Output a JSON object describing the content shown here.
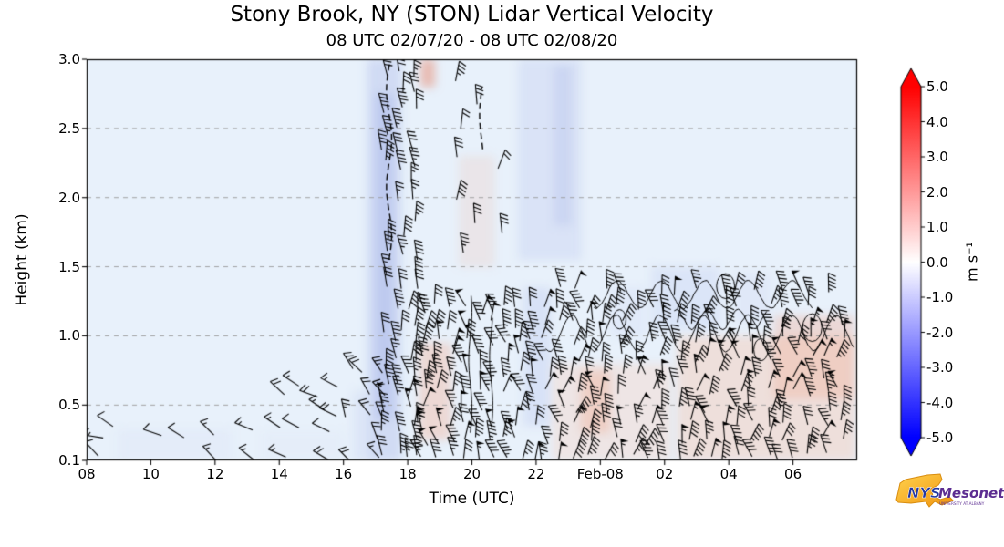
{
  "chart_data": {
    "type": "heatmap",
    "title": "Stony Brook, NY (STON) Lidar Vertical Velocity",
    "subtitle": "08 UTC 02/07/20 - 08 UTC 02/08/20",
    "xlabel": "Time (UTC)",
    "ylabel": "Height (km)",
    "x_range": [
      8,
      32
    ],
    "y_range": [
      0.1,
      3.0
    ],
    "plot_bg": "#e8f1fb",
    "grid_y": [
      0.5,
      1.0,
      1.5,
      2.0,
      2.5
    ],
    "x_ticks": [
      {
        "value": 8,
        "label": "08"
      },
      {
        "value": 10,
        "label": "10"
      },
      {
        "value": 12,
        "label": "12"
      },
      {
        "value": 14,
        "label": "14"
      },
      {
        "value": 16,
        "label": "16"
      },
      {
        "value": 18,
        "label": "18"
      },
      {
        "value": 20,
        "label": "20"
      },
      {
        "value": 22,
        "label": "22"
      },
      {
        "value": 24,
        "label": "Feb-08"
      },
      {
        "value": 26,
        "label": "02"
      },
      {
        "value": 28,
        "label": "04"
      },
      {
        "value": 30,
        "label": "06"
      }
    ],
    "y_ticks": [
      {
        "value": 3.0,
        "label": "3.0"
      },
      {
        "value": 2.5,
        "label": "2.5"
      },
      {
        "value": 2.0,
        "label": "2.0"
      },
      {
        "value": 1.5,
        "label": "1.5"
      },
      {
        "value": 1.0,
        "label": "1.0"
      },
      {
        "value": 0.5,
        "label": "0.5"
      },
      {
        "value": 0.1,
        "label": "0.1"
      }
    ],
    "colorbar": {
      "label": "m s⁻¹",
      "vmin": -5.0,
      "vmax": 5.0,
      "extend": "both",
      "color_pos": "#ff0000",
      "color_zero": "#ffffff",
      "color_neg": "#0000ff",
      "ticks": [
        {
          "value": 5,
          "label": "5.0"
        },
        {
          "value": 4,
          "label": "4.0"
        },
        {
          "value": 3,
          "label": "3.0"
        },
        {
          "value": 2,
          "label": "2.0"
        },
        {
          "value": 1,
          "label": "1.0"
        },
        {
          "value": 0,
          "label": "0.0"
        },
        {
          "value": -1,
          "label": "-1.0"
        },
        {
          "value": -2,
          "label": "-2.0"
        },
        {
          "value": -3,
          "label": "-3.0"
        },
        {
          "value": -4,
          "label": "-4.0"
        },
        {
          "value": -5,
          "label": "-5.0"
        }
      ]
    },
    "seed": 20200207,
    "shading": [
      {
        "x0": 16.75,
        "x1": 17.8,
        "y0": 0.1,
        "y1": 3.0,
        "color": "#b9c6ee",
        "alpha": 0.5
      },
      {
        "x0": 17.0,
        "x1": 17.55,
        "y0": 0.4,
        "y1": 2.75,
        "color": "#a3b2e8",
        "alpha": 0.4
      },
      {
        "x0": 16.3,
        "x1": 16.8,
        "y0": 0.1,
        "y1": 0.6,
        "color": "#ccd6f3",
        "alpha": 0.4
      },
      {
        "x0": 21.45,
        "x1": 23.4,
        "y0": 1.55,
        "y1": 3.0,
        "color": "#ccd6f3",
        "alpha": 0.5
      },
      {
        "x0": 22.55,
        "x1": 23.1,
        "y0": 1.8,
        "y1": 2.95,
        "color": "#b6c3ec",
        "alpha": 0.4
      },
      {
        "x0": 21.6,
        "x1": 22.45,
        "y0": 0.35,
        "y1": 1.35,
        "color": "#c5d0f1",
        "alpha": 0.45
      },
      {
        "x0": 18.35,
        "x1": 19.35,
        "y0": 0.25,
        "y1": 0.95,
        "color": "#f2c0ae",
        "alpha": 0.5
      },
      {
        "x0": 18.4,
        "x1": 18.85,
        "y0": 2.8,
        "y1": 3.0,
        "color": "#e88f79",
        "alpha": 0.55
      },
      {
        "x0": 22.5,
        "x1": 26.2,
        "y0": 0.1,
        "y1": 0.8,
        "color": "#f6d6c9",
        "alpha": 0.45
      },
      {
        "x0": 23.4,
        "x1": 24.3,
        "y0": 0.3,
        "y1": 0.75,
        "color": "#efae97",
        "alpha": 0.4
      },
      {
        "x0": 26.4,
        "x1": 31.95,
        "y0": 0.1,
        "y1": 1.0,
        "color": "#f4cdbc",
        "alpha": 0.5
      },
      {
        "x0": 29.4,
        "x1": 31.9,
        "y0": 0.55,
        "y1": 1.15,
        "color": "#efb59f",
        "alpha": 0.4
      },
      {
        "x0": 25.6,
        "x1": 27.7,
        "y0": 1.05,
        "y1": 1.5,
        "color": "#ccd6f3",
        "alpha": 0.45
      },
      {
        "x0": 28.2,
        "x1": 29.3,
        "y0": 1.1,
        "y1": 1.45,
        "color": "#d5ddf5",
        "alpha": 0.4
      },
      {
        "x0": 9.0,
        "x1": 12.5,
        "y0": 0.1,
        "y1": 0.32,
        "color": "#dfe7f7",
        "alpha": 0.5
      },
      {
        "x0": 13.5,
        "x1": 16.0,
        "y0": 0.1,
        "y1": 0.3,
        "color": "#e2e9f8",
        "alpha": 0.4
      },
      {
        "x0": 19.6,
        "x1": 20.7,
        "y0": 1.5,
        "y1": 2.3,
        "color": "#f0c4b4",
        "alpha": 0.25
      },
      {
        "x0": 24.3,
        "x1": 25.4,
        "y0": 1.0,
        "y1": 1.35,
        "color": "#d5ddf5",
        "alpha": 0.35
      }
    ],
    "barb_regions": [
      {
        "x0": 8.3,
        "x1": 16.0,
        "y0": 0.14,
        "y1": 0.44,
        "dx": 0.72,
        "dy": 0.17,
        "prob": 0.8,
        "spd_min": 10,
        "spd_max": 18,
        "ang": -150,
        "ang_jit": 22,
        "len": 21
      },
      {
        "x0": 14.2,
        "x1": 16.3,
        "y0": 0.44,
        "y1": 0.62,
        "dx": 0.55,
        "dy": 0.16,
        "prob": 0.6,
        "spd_min": 12,
        "spd_max": 20,
        "ang": -145,
        "ang_jit": 20,
        "len": 21
      },
      {
        "x0": 16.2,
        "x1": 17.3,
        "y0": 0.12,
        "y1": 0.85,
        "dx": 0.5,
        "dy": 0.15,
        "prob": 0.7,
        "spd_min": 15,
        "spd_max": 30,
        "ang": -120,
        "ang_jit": 18,
        "len": 20
      },
      {
        "x0": 17.3,
        "x1": 18.6,
        "y0": 0.15,
        "y1": 3.0,
        "dx": 0.45,
        "dy": 0.13,
        "prob": 0.82,
        "spd_min": 25,
        "spd_max": 48,
        "ang": -95,
        "ang_jit": 12,
        "len": 22
      },
      {
        "x0": 19.6,
        "x1": 21.3,
        "y0": 1.35,
        "y1": 3.0,
        "dx": 0.6,
        "dy": 0.22,
        "prob": 0.5,
        "spd_min": 20,
        "spd_max": 40,
        "ang": -85,
        "ang_jit": 18,
        "len": 22
      },
      {
        "x0": 18.1,
        "x1": 22.3,
        "y0": 0.12,
        "y1": 1.3,
        "dx": 0.42,
        "dy": 0.12,
        "prob": 0.9,
        "spd_min": 28,
        "spd_max": 55,
        "ang": -95,
        "ang_jit": 28,
        "len": 21
      },
      {
        "x0": 22.3,
        "x1": 31.9,
        "y0": 0.12,
        "y1": 1.42,
        "dx": 0.46,
        "dy": 0.12,
        "prob": 0.85,
        "spd_min": 28,
        "spd_max": 55,
        "ang": -90,
        "ang_jit": 32,
        "len": 21
      }
    ],
    "contours": {
      "dashed_vertical": [
        {
          "x": 17.42,
          "y0": 1.55,
          "y1": 3.0,
          "amp": 0.08
        },
        {
          "x": 20.3,
          "y0": 2.35,
          "y1": 2.8,
          "amp": 0.06
        }
      ],
      "solid_vertical": [
        {
          "x": 19.95,
          "y0": 0.3,
          "y1": 1.3,
          "amp": 0.05
        },
        {
          "x": 20.6,
          "y0": 0.35,
          "y1": 1.15,
          "amp": 0.05
        }
      ],
      "wavy_horizontal": [
        {
          "y": 1.02,
          "x0": 22.3,
          "x1": 31.9,
          "amp": 0.13,
          "waves": 7
        },
        {
          "y": 1.3,
          "x0": 23.8,
          "x1": 30.6,
          "amp": 0.1,
          "waves": 5
        },
        {
          "y": 1.12,
          "x0": 26.3,
          "x1": 29.2,
          "amp": 0.07,
          "waves": 3
        }
      ],
      "loops": [
        {
          "cx": 27.9,
          "cy": 1.36,
          "rx": 0.28,
          "ry": 0.09
        },
        {
          "cx": 24.6,
          "cy": 1.12,
          "rx": 0.2,
          "ry": 0.07
        },
        {
          "cx": 30.6,
          "cy": 1.06,
          "rx": 0.3,
          "ry": 0.1
        },
        {
          "cx": 29.0,
          "cy": 0.9,
          "rx": 0.22,
          "ry": 0.08
        }
      ]
    }
  },
  "logo": {
    "line1": "NYS",
    "line2": "Mesonet",
    "line3": "UNIVERSITY AT ALBANY",
    "state_color": "#f5a623"
  }
}
